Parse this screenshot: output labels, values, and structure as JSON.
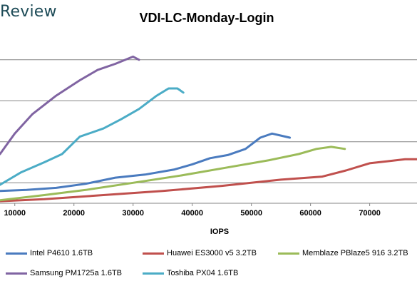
{
  "brand": "Review",
  "chart_data": {
    "type": "line",
    "title": "VDI-LC-Monday-Login",
    "xlabel": "IOPS",
    "ylabel": "",
    "xlim": [
      7500,
      78000
    ],
    "ylim": [
      0,
      1.6
    ],
    "xticks": [
      10000,
      20000,
      30000,
      40000,
      50000,
      60000,
      70000
    ],
    "xtick_labels": [
      "10000",
      "20000",
      "30000",
      "40000",
      "50000",
      "60000",
      "70000"
    ],
    "grid": "horizontal",
    "legend": "bottom",
    "series": [
      {
        "name": "Intel P4610 1.6TB",
        "color": "#4a7bbf",
        "x": [
          7500,
          12000,
          17000,
          22000,
          27000,
          32000,
          37000,
          40000,
          43000,
          46000,
          49000,
          51500,
          53500,
          55000,
          56500
        ],
        "y": [
          0.12,
          0.13,
          0.15,
          0.19,
          0.25,
          0.28,
          0.33,
          0.38,
          0.44,
          0.47,
          0.53,
          0.64,
          0.68,
          0.66,
          0.64
        ]
      },
      {
        "name": "Huawei ES3000 v5 3.2TB",
        "color": "#c0504d",
        "x": [
          7500,
          15000,
          25000,
          35000,
          45000,
          55000,
          62000,
          66000,
          70000,
          73000,
          76000,
          78000
        ],
        "y": [
          0.02,
          0.04,
          0.08,
          0.12,
          0.17,
          0.23,
          0.26,
          0.32,
          0.39,
          0.41,
          0.43,
          0.43
        ]
      },
      {
        "name": "Memblaze PBlaze5 916 3.2TB",
        "color": "#9bbb59",
        "x": [
          7500,
          15000,
          22000,
          30000,
          38000,
          46000,
          53000,
          58000,
          61000,
          63500,
          65800
        ],
        "y": [
          0.03,
          0.08,
          0.13,
          0.2,
          0.27,
          0.35,
          0.42,
          0.48,
          0.53,
          0.55,
          0.53
        ]
      },
      {
        "name": "Samsung PM1725a 1.6TB",
        "color": "#8064a2",
        "x": [
          7500,
          10000,
          13000,
          17000,
          21000,
          24000,
          27000,
          30000,
          31000
        ],
        "y": [
          0.48,
          0.68,
          0.87,
          1.05,
          1.2,
          1.3,
          1.36,
          1.43,
          1.4
        ]
      },
      {
        "name": "Toshiba PX04 1.6TB",
        "color": "#4bacc6",
        "x": [
          7500,
          11000,
          15000,
          18000,
          21000,
          25000,
          28000,
          31000,
          34000,
          36000,
          37500,
          38500
        ],
        "y": [
          0.18,
          0.3,
          0.4,
          0.48,
          0.65,
          0.73,
          0.82,
          0.92,
          1.05,
          1.12,
          1.12,
          1.08
        ]
      }
    ]
  }
}
